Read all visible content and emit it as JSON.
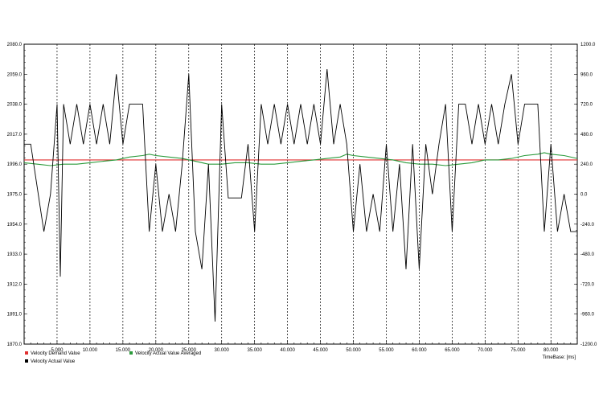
{
  "chart_data": {
    "type": "line",
    "x_axis": {
      "label": "TimeBase: [ms]",
      "range": [
        0,
        84
      ],
      "ticks": [
        5,
        10,
        15,
        20,
        25,
        30,
        35,
        40,
        45,
        50,
        55,
        60,
        65,
        70,
        75,
        80
      ],
      "tick_labels": [
        "5.000",
        "10.000",
        "15.000",
        "20.000",
        "25.000",
        "30.000",
        "35.000",
        "40.000",
        "45.000",
        "50.000",
        "55.000",
        "60.000",
        "65.000",
        "70.000",
        "75.000",
        "80.000"
      ]
    },
    "y_left": {
      "range": [
        1870,
        2080
      ],
      "ticks": [
        1870,
        1891,
        1912,
        1933,
        1954,
        1975,
        1996,
        2017,
        2038,
        2059,
        2080
      ],
      "tick_labels": [
        "1870.0",
        "1891.0",
        "1912.0",
        "1933.0",
        "1954.0",
        "1975.0",
        "1996.0",
        "2017.0",
        "2038.0",
        "2059.0",
        "2080.0"
      ]
    },
    "y_right": {
      "range": [
        -1200,
        1200
      ],
      "ticks": [
        -1200,
        -960,
        -720,
        -480,
        -240,
        0,
        240,
        480,
        720,
        960,
        1200
      ],
      "tick_labels": [
        "-1200.0",
        "-960.0",
        "-720.0",
        "-480.0",
        "-240.0",
        "0.0",
        "240.0",
        "480.0",
        "720.0",
        "960.0",
        "1200.0"
      ]
    },
    "grid": "vertical dashed",
    "legend_position": "bottom-left",
    "series": [
      {
        "name": "Velocity Demand Value",
        "color": "#e03030",
        "axis": "left",
        "x": [
          0,
          84
        ],
        "y": [
          1999,
          1999
        ]
      },
      {
        "name": "Velocity Actual Value Averaged",
        "color": "#2a9a3a",
        "axis": "left",
        "x": [
          0,
          2,
          4,
          6,
          8,
          10,
          12,
          14,
          16,
          18,
          19,
          20,
          22,
          24,
          26,
          28,
          30,
          32,
          34,
          36,
          38,
          40,
          42,
          44,
          46,
          48,
          49,
          50,
          52,
          54,
          56,
          58,
          60,
          62,
          64,
          66,
          68,
          70,
          72,
          74,
          76,
          78,
          79,
          80,
          82,
          84
        ],
        "y": [
          1997,
          1996,
          1995,
          1996,
          1996,
          1997,
          1998,
          1999,
          2001,
          2002,
          2003,
          2002,
          2001,
          2000,
          1998,
          1996,
          1996,
          1997,
          1997,
          1996,
          1996,
          1997,
          1998,
          1999,
          2000,
          2001,
          2003,
          2002,
          2001,
          2000,
          1999,
          1997,
          1996,
          1996,
          1995,
          1996,
          1997,
          1999,
          1999,
          2000,
          2002,
          2003,
          2004,
          2003,
          2002,
          2000
        ]
      },
      {
        "name": "Velocity Actual Value",
        "color": "#000000",
        "axis": "right",
        "x": [
          0,
          1,
          2,
          3,
          4,
          5,
          5.5,
          6,
          7,
          8,
          9,
          10,
          11,
          12,
          13,
          14,
          15,
          16,
          17,
          18,
          19,
          20,
          21,
          22,
          23,
          24,
          25,
          26,
          27,
          28,
          29,
          30,
          31,
          32,
          33,
          34,
          35,
          36,
          37,
          38,
          39,
          40,
          41,
          42,
          43,
          44,
          45,
          46,
          47,
          48,
          49,
          50,
          51,
          52,
          53,
          54,
          55,
          56,
          57,
          58,
          59,
          60,
          61,
          62,
          63,
          64,
          65,
          66,
          67,
          68,
          69,
          70,
          71,
          72,
          73,
          74,
          75,
          76,
          77,
          78,
          79,
          80,
          81,
          82,
          83,
          84
        ],
        "y": [
          400,
          400,
          50,
          -300,
          0,
          720,
          -660,
          720,
          400,
          720,
          400,
          720,
          400,
          720,
          400,
          960,
          400,
          720,
          720,
          720,
          -300,
          240,
          -300,
          0,
          -300,
          240,
          960,
          -300,
          -600,
          240,
          -1020,
          720,
          -30,
          -30,
          -30,
          400,
          -300,
          720,
          400,
          720,
          400,
          720,
          400,
          720,
          400,
          720,
          400,
          1000,
          400,
          720,
          400,
          -300,
          240,
          -300,
          0,
          -300,
          400,
          -300,
          240,
          -600,
          400,
          -600,
          400,
          0,
          400,
          720,
          -300,
          720,
          720,
          400,
          720,
          400,
          720,
          400,
          720,
          960,
          400,
          720,
          720,
          720,
          -300,
          400,
          -300,
          0,
          -300,
          -300
        ]
      }
    ]
  }
}
